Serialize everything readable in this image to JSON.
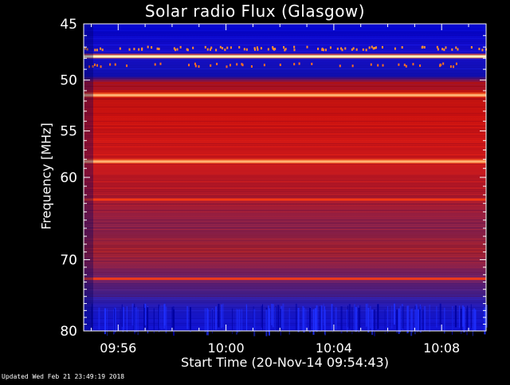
{
  "chart_data": {
    "type": "heatmap",
    "title": "Solar radio Flux (Glasgow)",
    "xlabel": "Start Time (20-Nov-14 09:54:43)",
    "ylabel": "Frequency [MHz]",
    "x_tick_labels": [
      "09:56",
      "10:00",
      "10:04",
      "10:08"
    ],
    "x_tick_values_minutes": [
      56,
      60,
      64,
      68
    ],
    "xlim_minutes": [
      54.72,
      69.65
    ],
    "y_tick_labels": [
      "45",
      "50",
      "55",
      "60",
      "70",
      "80"
    ],
    "y_tick_values": [
      45,
      50,
      55,
      60,
      70,
      80
    ],
    "ylim": [
      45,
      80
    ],
    "y_scale": "log",
    "y_direction": "top-to-bottom increasing",
    "colormap": [
      "#0000c0",
      "#1010e0",
      "#5020a0",
      "#902060",
      "#c01010",
      "#e02010",
      "#ff3010",
      "#ff8040",
      "#ffd0a0",
      "#ffffff"
    ],
    "bright_bands_mhz": [
      47.8,
      51.4,
      58.2
    ],
    "medium_bands_mhz": [
      62.5,
      72.5
    ],
    "footer": "Updated Wed Feb 21 23:49:19 2018"
  }
}
